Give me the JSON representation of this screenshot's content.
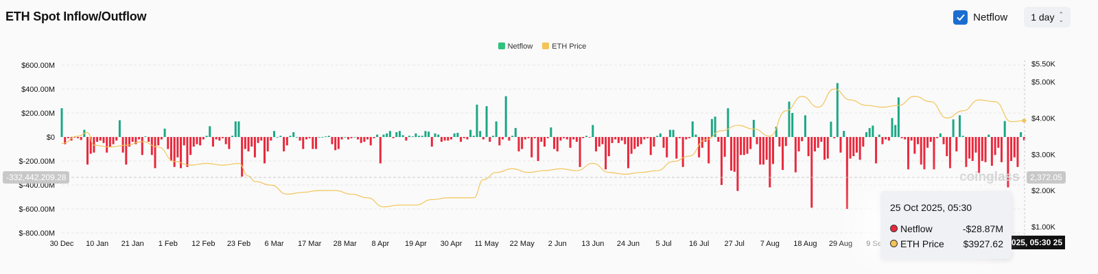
{
  "header": {
    "title": "ETH Spot Inflow/Outflow",
    "netflow_checkbox_label": "Netflow",
    "netflow_checked": true,
    "interval_select": "1 day"
  },
  "colors": {
    "positive": "#1aa784",
    "negative": "#e8283c",
    "price": "#f3c458",
    "checkbox": "#1c6dd0"
  },
  "crosshair": {
    "left_value": "-332,442,209.28",
    "right_value": "2,372.05",
    "x_label": "25 Oct 2025, 05:30"
  },
  "watermark": "coinglass",
  "tooltip": {
    "date": "25 Oct 2025, 05:30",
    "rows": [
      {
        "label": "Netflow",
        "value": "-$28.87M",
        "color": "#e8283c"
      },
      {
        "label": "ETH Price",
        "value": "$3927.62",
        "color": "#f3c458"
      }
    ]
  },
  "chart_data": {
    "type": "bar+line",
    "title": "ETH Spot Inflow/Outflow",
    "legend": {
      "position": "top-center",
      "entries": [
        "Netflow",
        "ETH Price"
      ]
    },
    "x_start": "30 Dec 2024",
    "x_end": "25 Oct 2025",
    "x_ticks": [
      {
        "i": 0,
        "label": "30 Dec"
      },
      {
        "i": 11,
        "label": "10 Jan"
      },
      {
        "i": 22,
        "label": "21 Jan"
      },
      {
        "i": 33,
        "label": "1 Feb"
      },
      {
        "i": 44,
        "label": "12 Feb"
      },
      {
        "i": 55,
        "label": "23 Feb"
      },
      {
        "i": 66,
        "label": "6 Mar"
      },
      {
        "i": 77,
        "label": "17 Mar"
      },
      {
        "i": 88,
        "label": "28 Mar"
      },
      {
        "i": 99,
        "label": "8 Apr"
      },
      {
        "i": 110,
        "label": "19 Apr"
      },
      {
        "i": 121,
        "label": "30 Apr"
      },
      {
        "i": 132,
        "label": "11 May"
      },
      {
        "i": 143,
        "label": "22 May"
      },
      {
        "i": 154,
        "label": "2 Jun"
      },
      {
        "i": 165,
        "label": "13 Jun"
      },
      {
        "i": 176,
        "label": "24 Jun"
      },
      {
        "i": 187,
        "label": "5 Jul"
      },
      {
        "i": 198,
        "label": "16 Jul"
      },
      {
        "i": 209,
        "label": "27 Jul"
      },
      {
        "i": 220,
        "label": "7 Aug"
      },
      {
        "i": 231,
        "label": "18 Aug"
      },
      {
        "i": 242,
        "label": "29 Aug"
      },
      {
        "i": 253,
        "label": "9 Sep"
      }
    ],
    "y_left": {
      "label": "Netflow",
      "range": [
        -800,
        600
      ],
      "unit": "M USD",
      "ticks": [
        {
          "v": 600,
          "label": "$600.00M"
        },
        {
          "v": 400,
          "label": "$400.00M"
        },
        {
          "v": 200,
          "label": "$200.00M"
        },
        {
          "v": 0,
          "label": "$0"
        },
        {
          "v": -200,
          "label": "$-200.00M"
        },
        {
          "v": -400,
          "label": "$-400.00M"
        },
        {
          "v": -600,
          "label": "$-600.00M"
        },
        {
          "v": -800,
          "label": "$-800.00M"
        }
      ]
    },
    "y_right": {
      "label": "ETH Price",
      "range": [
        1000,
        5500
      ],
      "ticks": [
        {
          "v": 5500,
          "label": "$5.50K"
        },
        {
          "v": 5000,
          "label": "$5.00K"
        },
        {
          "v": 4000,
          "label": "$4.00K"
        },
        {
          "v": 3000,
          "label": "$3.00K"
        },
        {
          "v": 2000,
          "label": "$2.00K"
        },
        {
          "v": 1000,
          "label": "$1.00K"
        }
      ]
    },
    "grid": true,
    "netflow_musd": [
      240,
      -60,
      -10,
      -30,
      -5,
      -10,
      -25,
      60,
      -230,
      -140,
      -130,
      -40,
      -30,
      -50,
      -130,
      -80,
      -60,
      -30,
      140,
      -130,
      -230,
      -80,
      -40,
      -60,
      -20,
      -150,
      5,
      -40,
      -150,
      -260,
      -70,
      -20,
      70,
      -100,
      -200,
      -250,
      -170,
      -260,
      -70,
      -250,
      -150,
      -80,
      -60,
      -70,
      -20,
      10,
      90,
      -80,
      -20,
      -30,
      -10,
      -60,
      -100,
      10,
      130,
      130,
      -330,
      -100,
      -120,
      -80,
      -170,
      -50,
      -30,
      -220,
      -120,
      -30,
      50,
      0,
      10,
      -120,
      -70,
      10,
      40,
      0,
      -30,
      -100,
      -20,
      -10,
      -100,
      -100,
      0,
      0,
      5,
      10,
      -60,
      -110,
      -100,
      -20,
      0,
      -20,
      -10,
      0,
      -20,
      -50,
      -40,
      -20,
      -70,
      -10,
      20,
      -220,
      20,
      30,
      50,
      -10,
      40,
      50,
      15,
      -30,
      10,
      5,
      30,
      10,
      10,
      50,
      45,
      -80,
      30,
      20,
      -40,
      -30,
      -30,
      -20,
      30,
      35,
      -40,
      -10,
      -20,
      60,
      10,
      270,
      50,
      -20,
      257,
      -40,
      10,
      130,
      -70,
      -20,
      340,
      -30,
      10,
      75,
      -120,
      -100,
      -20,
      -10,
      -170,
      -10,
      -200,
      -40,
      -80,
      -10,
      80,
      -100,
      -120,
      -30,
      -10,
      -20,
      -90,
      -20,
      -40,
      -250,
      -10,
      10,
      -5,
      100,
      -120,
      -80,
      -60,
      -270,
      -160,
      -50,
      -20,
      -50,
      -30,
      -60,
      -260,
      -140,
      -100,
      -80,
      -60,
      -20,
      -10,
      -150,
      -80,
      10,
      30,
      -90,
      -170,
      60,
      60,
      -180,
      -10,
      -250,
      -20,
      -10,
      130,
      20,
      -170,
      -90,
      -40,
      -220,
      150,
      170,
      -40,
      -400,
      -165,
      240,
      -280,
      -290,
      -450,
      -150,
      -150,
      -140,
      -100,
      143,
      -60,
      -230,
      -230,
      -190,
      -420,
      -225,
      86,
      -80,
      -275,
      -75,
      295,
      200,
      -295,
      -120,
      -35,
      181,
      -160,
      -590,
      -120,
      -90,
      -40,
      -190,
      -180,
      128,
      -10,
      450,
      -130,
      51,
      -600,
      -180,
      -160,
      -130,
      -190,
      -80,
      40,
      75,
      95,
      -220,
      20,
      -60,
      -20,
      -30,
      158,
      100,
      330,
      -10,
      -20,
      -270,
      -30,
      -140,
      -60,
      -230,
      -270,
      -90,
      -40,
      -270,
      -10,
      30,
      -60,
      -160,
      -260,
      147,
      -120,
      181,
      10,
      -250,
      -180,
      -200,
      -130,
      -300,
      -200,
      -210,
      20,
      -240,
      -150,
      -90,
      -210,
      133,
      -420,
      -200,
      -170,
      -250,
      40,
      -28.87
    ],
    "eth_price": [
      {
        "i": 0,
        "v": 3300
      },
      {
        "i": 5,
        "v": 3500
      },
      {
        "i": 8,
        "v": 3600
      },
      {
        "i": 10,
        "v": 3250
      },
      {
        "i": 15,
        "v": 3200
      },
      {
        "i": 20,
        "v": 3250
      },
      {
        "i": 25,
        "v": 3350
      },
      {
        "i": 30,
        "v": 3200
      },
      {
        "i": 35,
        "v": 2800
      },
      {
        "i": 40,
        "v": 2700
      },
      {
        "i": 45,
        "v": 2750
      },
      {
        "i": 50,
        "v": 2700
      },
      {
        "i": 55,
        "v": 2750
      },
      {
        "i": 58,
        "v": 2400
      },
      {
        "i": 60,
        "v": 2250
      },
      {
        "i": 65,
        "v": 2150
      },
      {
        "i": 70,
        "v": 1900
      },
      {
        "i": 75,
        "v": 1950
      },
      {
        "i": 80,
        "v": 2000
      },
      {
        "i": 85,
        "v": 2000
      },
      {
        "i": 90,
        "v": 1900
      },
      {
        "i": 95,
        "v": 1800
      },
      {
        "i": 100,
        "v": 1550
      },
      {
        "i": 105,
        "v": 1600
      },
      {
        "i": 110,
        "v": 1600
      },
      {
        "i": 115,
        "v": 1750
      },
      {
        "i": 120,
        "v": 1800
      },
      {
        "i": 128,
        "v": 1800
      },
      {
        "i": 131,
        "v": 2300
      },
      {
        "i": 135,
        "v": 2500
      },
      {
        "i": 140,
        "v": 2600
      },
      {
        "i": 145,
        "v": 2500
      },
      {
        "i": 150,
        "v": 2550
      },
      {
        "i": 155,
        "v": 2600
      },
      {
        "i": 160,
        "v": 2550
      },
      {
        "i": 165,
        "v": 2750
      },
      {
        "i": 170,
        "v": 2500
      },
      {
        "i": 175,
        "v": 2450
      },
      {
        "i": 180,
        "v": 2500
      },
      {
        "i": 185,
        "v": 2550
      },
      {
        "i": 190,
        "v": 2800
      },
      {
        "i": 195,
        "v": 2950
      },
      {
        "i": 200,
        "v": 3400
      },
      {
        "i": 205,
        "v": 3650
      },
      {
        "i": 210,
        "v": 3800
      },
      {
        "i": 215,
        "v": 3700
      },
      {
        "i": 220,
        "v": 3500
      },
      {
        "i": 225,
        "v": 4200
      },
      {
        "i": 230,
        "v": 4600
      },
      {
        "i": 235,
        "v": 4300
      },
      {
        "i": 240,
        "v": 4800
      },
      {
        "i": 245,
        "v": 4500
      },
      {
        "i": 250,
        "v": 4350
      },
      {
        "i": 255,
        "v": 4300
      },
      {
        "i": 260,
        "v": 4350
      },
      {
        "i": 265,
        "v": 4600
      },
      {
        "i": 270,
        "v": 4450
      },
      {
        "i": 275,
        "v": 4000
      },
      {
        "i": 280,
        "v": 4200
      },
      {
        "i": 285,
        "v": 4500
      },
      {
        "i": 290,
        "v": 4450
      },
      {
        "i": 295,
        "v": 3900
      },
      {
        "i": 299,
        "v": 3927.62
      }
    ]
  }
}
